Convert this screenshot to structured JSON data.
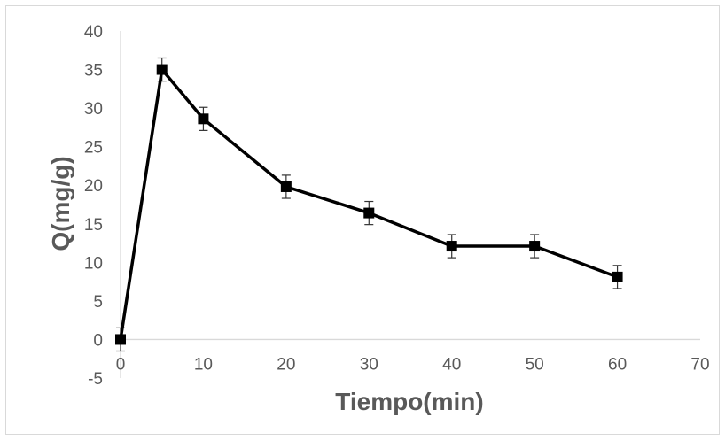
{
  "chart_data": {
    "type": "line",
    "title": "",
    "xlabel": "Tiempo(min)",
    "ylabel": "Q(mg/g)",
    "xlim": [
      0,
      70
    ],
    "ylim": [
      -5,
      40
    ],
    "x_ticks": [
      0,
      10,
      20,
      30,
      40,
      50,
      60,
      70
    ],
    "y_ticks": [
      -5,
      0,
      5,
      10,
      15,
      20,
      25,
      30,
      35,
      40
    ],
    "x_tick_labels": [
      "0",
      "10",
      "20",
      "30",
      "40",
      "50",
      "60",
      "70"
    ],
    "y_tick_labels": [
      "-5",
      "0",
      "5",
      "10",
      "15",
      "20",
      "25",
      "30",
      "35",
      "40"
    ],
    "grid": false,
    "legend": "none",
    "marker": "square",
    "series": [
      {
        "x": [
          0,
          5,
          10,
          20,
          30,
          40,
          50,
          60
        ],
        "y": [
          0,
          35,
          28.6,
          19.8,
          16.4,
          12.1,
          12.1,
          8.1
        ],
        "error": [
          1.5,
          1.5,
          1.5,
          1.5,
          1.5,
          1.5,
          1.5,
          1.5
        ],
        "color": "#000000"
      }
    ],
    "axis_color": "#d9d9d9",
    "text_color": "#595959",
    "frame_color": "#d9d9d9"
  }
}
